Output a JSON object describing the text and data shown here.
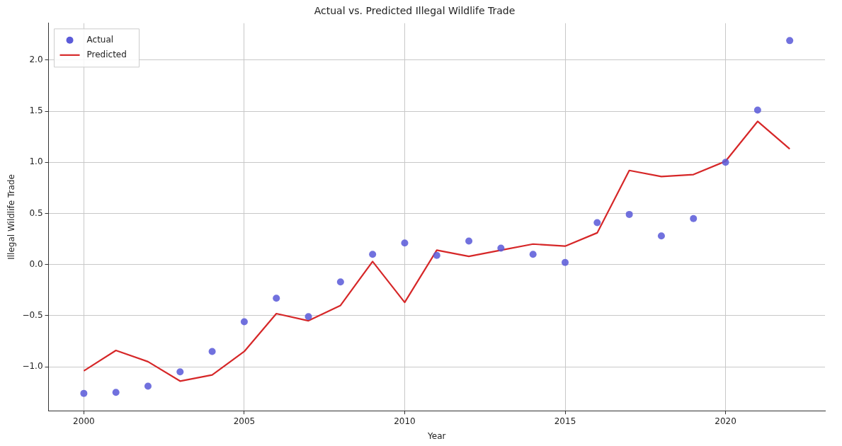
{
  "chart_data": {
    "type": "scatter",
    "title": "Actual vs. Predicted Illegal Wildlife Trade",
    "xlabel": "Year",
    "ylabel": "Illegal Wildlife Trade",
    "x": [
      2000,
      2001,
      2002,
      2003,
      2004,
      2005,
      2006,
      2007,
      2008,
      2009,
      2010,
      2011,
      2012,
      2013,
      2014,
      2015,
      2016,
      2017,
      2018,
      2019,
      2020,
      2021,
      2022
    ],
    "series": [
      {
        "name": "Actual",
        "marker": "circle",
        "color": "#5b5bd9",
        "values": [
          -1.26,
          -1.25,
          -1.19,
          -1.05,
          -0.85,
          -0.56,
          -0.33,
          -0.51,
          -0.17,
          0.1,
          0.21,
          0.09,
          0.23,
          0.16,
          0.1,
          0.02,
          0.41,
          0.49,
          0.28,
          0.45,
          1.0,
          1.51,
          2.19
        ]
      },
      {
        "name": "Predicted",
        "type": "line",
        "marker": "none",
        "color": "#d62728",
        "values": [
          -1.04,
          -0.84,
          -0.95,
          -1.14,
          -1.08,
          -0.85,
          -0.48,
          -0.55,
          -0.4,
          0.03,
          -0.37,
          0.14,
          0.08,
          0.14,
          0.2,
          0.18,
          0.31,
          0.92,
          0.86,
          0.88,
          1.01,
          1.4,
          1.13
        ]
      }
    ],
    "xlim": [
      1998.9,
      2023.1
    ],
    "xticks": [
      2000,
      2005,
      2010,
      2015,
      2020
    ],
    "ylim": [
      -1.43,
      2.36
    ],
    "yticks": [
      {
        "value": -1,
        "label": "−1.0"
      },
      {
        "value": -0.5,
        "label": "−0.5"
      },
      {
        "value": 0,
        "label": "0.0"
      },
      {
        "value": 0.5,
        "label": "0.5"
      },
      {
        "value": 1,
        "label": "1.0"
      },
      {
        "value": 1.5,
        "label": "1.5"
      },
      {
        "value": 2,
        "label": "2.0"
      }
    ],
    "grid": true,
    "legend": "top left",
    "line_style": "solid"
  }
}
